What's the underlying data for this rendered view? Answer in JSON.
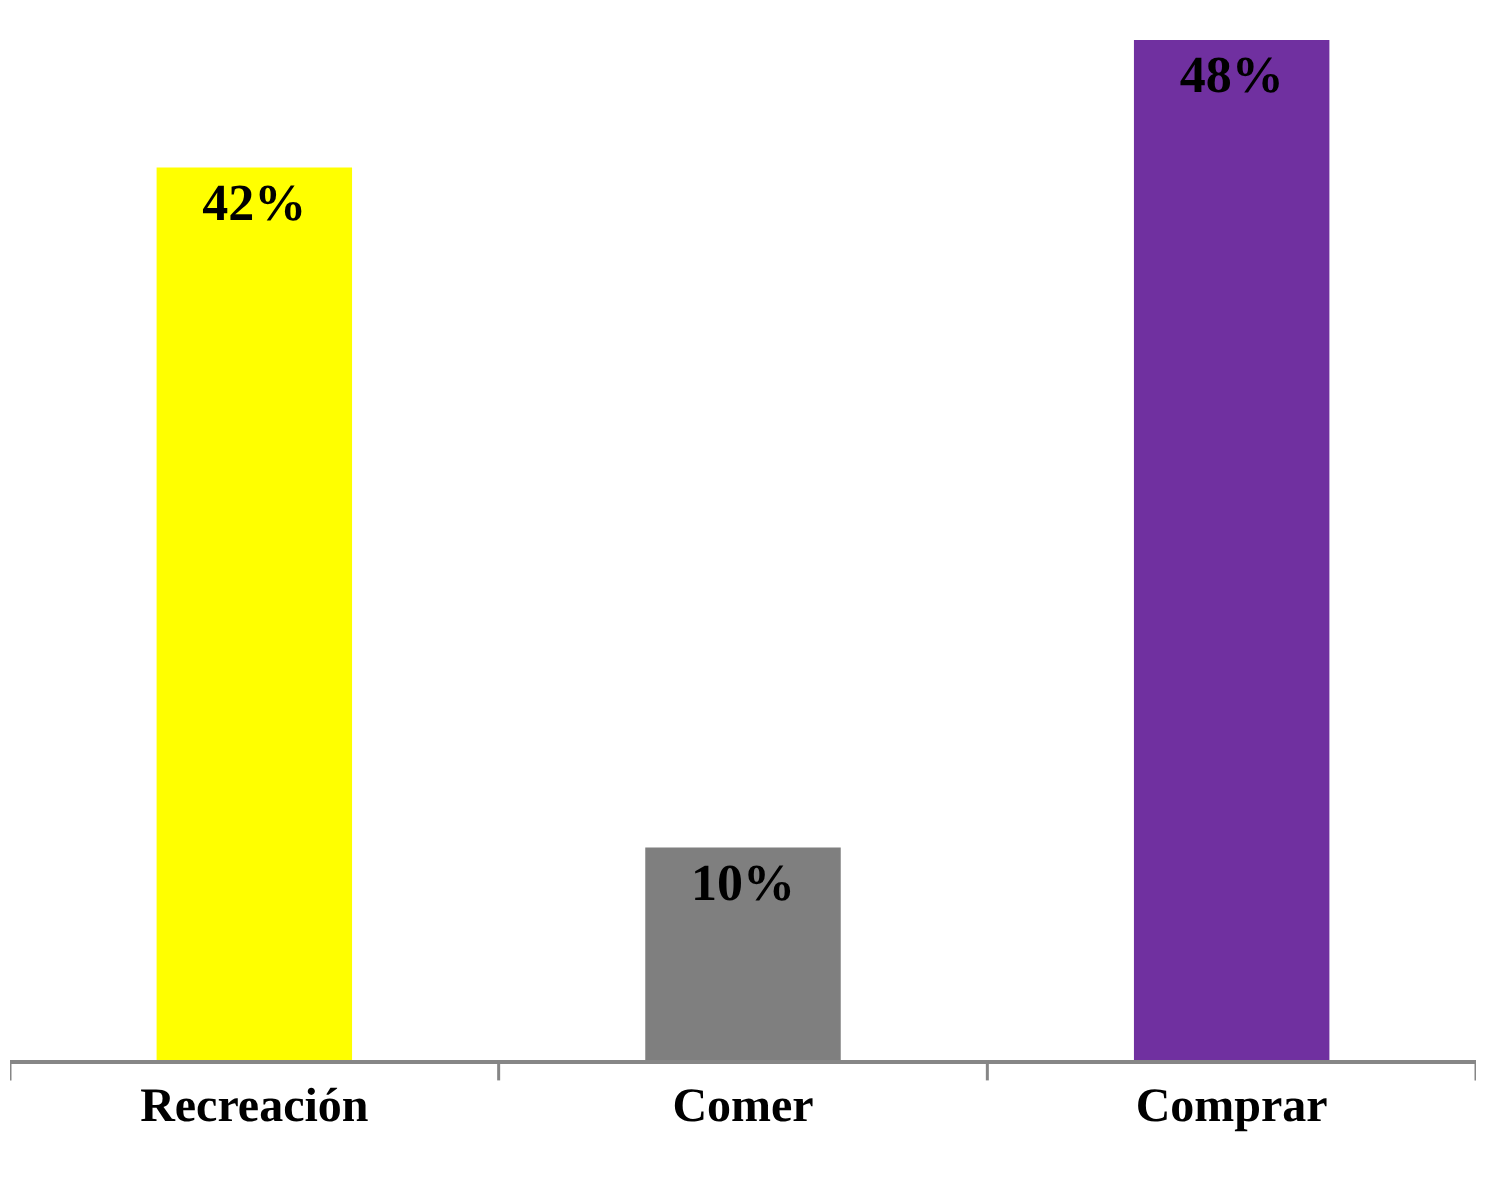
{
  "chart_data": {
    "type": "bar",
    "categories": [
      "Recreación",
      "Comer",
      "Comprar"
    ],
    "values": [
      42,
      10,
      48
    ],
    "colors": [
      "#ffff00",
      "#7f7f7f",
      "#7030a0"
    ],
    "value_labels": [
      "42%",
      "10%",
      "48%"
    ],
    "legend": false
  }
}
